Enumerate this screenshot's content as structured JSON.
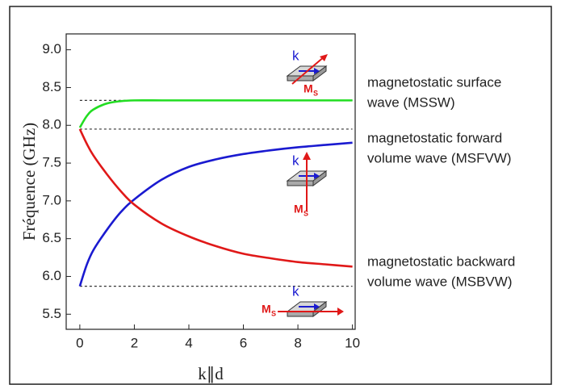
{
  "chart_data": {
    "type": "line",
    "x_label": "k∥d",
    "y_label": "Fréquence (GHz)",
    "xlim": [
      -0.5,
      10.1
    ],
    "ylim": [
      5.3,
      9.21
    ],
    "xticks": [
      0,
      2,
      4,
      6,
      8,
      10
    ],
    "yticks": [
      5.5,
      {
        "value": 6,
        "label": "6.0"
      },
      6.5,
      {
        "value": 7,
        "label": "7.0"
      },
      7.5,
      {
        "value": 8,
        "label": "8.0"
      },
      8.5,
      {
        "value": 9,
        "label": "9.0"
      }
    ],
    "series": [
      {
        "name": "MSSW",
        "color": "#22dd22",
        "x": [
          0,
          0.25,
          0.5,
          1,
          1.5,
          2,
          3,
          4,
          5,
          6,
          7,
          8,
          9,
          10
        ],
        "values": [
          7.97,
          8.12,
          8.21,
          8.29,
          8.32,
          8.33,
          8.33,
          8.33,
          8.33,
          8.33,
          8.33,
          8.33,
          8.33,
          8.33
        ]
      },
      {
        "name": "MSFVW",
        "color": "#1a1ad0",
        "x": [
          0,
          0.25,
          0.5,
          1,
          1.5,
          2,
          3,
          4,
          5,
          6,
          7,
          8,
          9,
          10
        ],
        "values": [
          5.87,
          6.15,
          6.35,
          6.62,
          6.85,
          7.02,
          7.28,
          7.45,
          7.55,
          7.62,
          7.67,
          7.71,
          7.74,
          7.77
        ]
      },
      {
        "name": "MSBVW",
        "color": "#e01818",
        "x": [
          0,
          0.25,
          0.5,
          1,
          1.5,
          2,
          3,
          4,
          5,
          6,
          7,
          8,
          9,
          10
        ],
        "values": [
          7.95,
          7.76,
          7.6,
          7.35,
          7.13,
          6.95,
          6.7,
          6.53,
          6.4,
          6.3,
          6.24,
          6.19,
          6.16,
          6.13
        ]
      }
    ],
    "reference_lines": [
      {
        "y": 8.33,
        "xlim": [
          0,
          10
        ]
      },
      {
        "y": 7.95,
        "xlim": [
          0,
          10
        ]
      },
      {
        "y": 5.87,
        "xlim": [
          0,
          10
        ]
      }
    ],
    "annotations": [
      {
        "lines": [
          "magnetostatic surface",
          "wave (MSSW)"
        ]
      },
      {
        "lines": [
          "magnetostatic forward",
          "volume wave (MSFVW)"
        ]
      },
      {
        "lines": [
          "magnetostatic backward",
          "volume wave (MSBVW)"
        ]
      }
    ],
    "icons": [
      {
        "wave_vector": "k",
        "magnetization": "M",
        "subscript": "S"
      },
      {
        "wave_vector": "k",
        "magnetization": "M",
        "subscript": "S"
      },
      {
        "wave_vector": "k",
        "magnetization": "M",
        "subscript": "S"
      }
    ]
  }
}
